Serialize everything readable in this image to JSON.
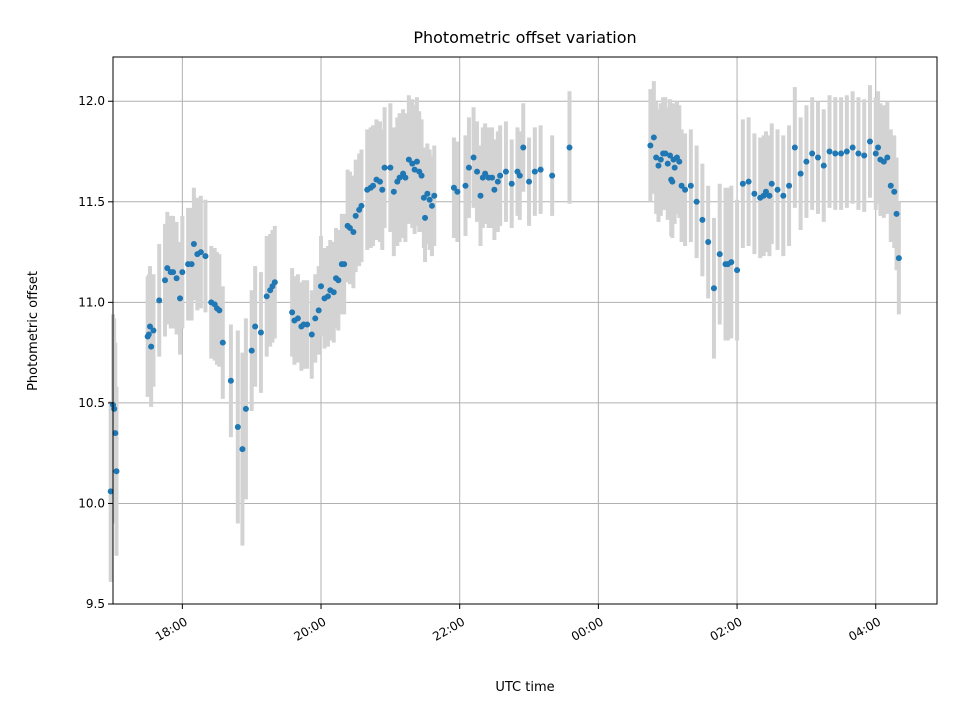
{
  "chart_data": {
    "type": "scatter",
    "title": "Photometric offset variation",
    "xlabel": "UTC time",
    "ylabel": "Photometric offset",
    "xlim": [
      "17:00",
      "04:53"
    ],
    "ylim": [
      9.5,
      12.22
    ],
    "grid": true,
    "x_ticks": [
      "18:00",
      "20:00",
      "22:00",
      "00:00",
      "02:00",
      "04:00"
    ],
    "y_ticks": [
      "9.5",
      "10.0",
      "10.5",
      "11.0",
      "11.5",
      "12.0"
    ],
    "colors": {
      "points": "#1f77b4",
      "error_bars": "#d3d3d3"
    },
    "series": [
      {
        "x": [
          "16:58",
          "17:00",
          "17:01",
          "17:02",
          "17:03",
          "17:30",
          "17:31",
          "17:32",
          "17:33",
          "17:35",
          "17:40",
          "17:45",
          "17:47",
          "17:50",
          "17:52",
          "17:55",
          "17:58",
          "18:00",
          "18:05",
          "18:08",
          "18:10",
          "18:13",
          "18:16",
          "18:20",
          "18:25",
          "18:28",
          "18:30",
          "18:32",
          "18:35",
          "18:42",
          "18:48",
          "18:52",
          "18:55",
          "19:00",
          "19:03",
          "19:08",
          "19:13",
          "19:16",
          "19:18",
          "19:20",
          "19:35",
          "19:37",
          "19:40",
          "19:43",
          "19:45",
          "19:48",
          "19:52",
          "19:55",
          "19:58",
          "20:00",
          "20:03",
          "20:06",
          "20:08",
          "20:11",
          "20:13",
          "20:15",
          "20:18",
          "20:20",
          "20:23",
          "20:25",
          "20:28",
          "20:30",
          "20:33",
          "20:35",
          "20:40",
          "20:43",
          "20:45",
          "20:48",
          "20:51",
          "20:53",
          "20:55",
          "21:00",
          "21:03",
          "21:06",
          "21:08",
          "21:11",
          "21:13",
          "21:16",
          "21:19",
          "21:21",
          "21:23",
          "21:25",
          "21:27",
          "21:29",
          "21:30",
          "21:32",
          "21:34",
          "21:36",
          "21:38",
          "21:55",
          "21:58",
          "22:05",
          "22:08",
          "22:12",
          "22:15",
          "22:18",
          "22:20",
          "22:22",
          "22:25",
          "22:28",
          "22:30",
          "22:33",
          "22:35",
          "22:40",
          "22:45",
          "22:50",
          "22:52",
          "22:55",
          "23:00",
          "23:05",
          "23:10",
          "23:20",
          "23:35",
          "00:45",
          "00:48",
          "00:50",
          "00:52",
          "00:54",
          "00:56",
          "00:58",
          "01:00",
          "01:02",
          "01:03",
          "01:04",
          "01:05",
          "01:06",
          "01:08",
          "01:10",
          "01:12",
          "01:15",
          "01:20",
          "01:25",
          "01:30",
          "01:35",
          "01:40",
          "01:45",
          "01:50",
          "01:52",
          "01:55",
          "02:00",
          "02:05",
          "02:10",
          "02:15",
          "02:20",
          "02:23",
          "02:25",
          "02:28",
          "02:30",
          "02:35",
          "02:40",
          "02:45",
          "02:50",
          "02:55",
          "03:00",
          "03:05",
          "03:10",
          "03:15",
          "03:20",
          "03:25",
          "03:30",
          "03:35",
          "03:40",
          "03:45",
          "03:50",
          "03:55",
          "04:00",
          "04:02",
          "04:04",
          "04:07",
          "04:10",
          "04:13",
          "04:16",
          "04:18",
          "04:20"
        ],
        "y": [
          10.06,
          10.49,
          10.47,
          10.35,
          10.16,
          10.83,
          10.84,
          10.88,
          10.78,
          10.86,
          11.01,
          11.11,
          11.17,
          11.15,
          11.15,
          11.12,
          11.02,
          11.15,
          11.19,
          11.19,
          11.29,
          11.24,
          11.25,
          11.23,
          11.0,
          10.99,
          10.97,
          10.96,
          10.8,
          10.61,
          10.38,
          10.27,
          10.47,
          10.76,
          10.88,
          10.85,
          11.03,
          11.06,
          11.08,
          11.1,
          10.95,
          10.91,
          10.92,
          10.88,
          10.89,
          10.89,
          10.84,
          10.92,
          10.96,
          11.08,
          11.02,
          11.03,
          11.06,
          11.05,
          11.12,
          11.11,
          11.19,
          11.19,
          11.38,
          11.37,
          11.35,
          11.43,
          11.46,
          11.48,
          11.56,
          11.57,
          11.58,
          11.61,
          11.6,
          11.56,
          11.67,
          11.67,
          11.55,
          11.6,
          11.62,
          11.64,
          11.62,
          11.71,
          11.69,
          11.66,
          11.7,
          11.65,
          11.63,
          11.52,
          11.42,
          11.54,
          11.51,
          11.48,
          11.53,
          11.57,
          11.55,
          11.58,
          11.67,
          11.72,
          11.65,
          11.53,
          11.62,
          11.64,
          11.62,
          11.62,
          11.56,
          11.6,
          11.63,
          11.65,
          11.59,
          11.65,
          11.63,
          11.77,
          11.6,
          11.65,
          11.66,
          11.63,
          11.77,
          11.78,
          11.82,
          11.72,
          11.68,
          11.71,
          11.74,
          11.74,
          11.69,
          11.73,
          11.61,
          11.6,
          11.71,
          11.67,
          11.72,
          11.7,
          11.58,
          11.56,
          11.58,
          11.5,
          11.41,
          11.3,
          11.07,
          11.24,
          11.19,
          11.19,
          11.2,
          11.16,
          11.59,
          11.6,
          11.54,
          11.52,
          11.53,
          11.55,
          11.53,
          11.59,
          11.56,
          11.53,
          11.58,
          11.77,
          11.64,
          11.7,
          11.74,
          11.72,
          11.68,
          11.75,
          11.74,
          11.74,
          11.75,
          11.77,
          11.74,
          11.73,
          11.8,
          11.74,
          11.77,
          11.71,
          11.7,
          11.72,
          11.58,
          11.55,
          11.44,
          11.22
        ],
        "yerr": [
          0.45,
          0.45,
          0.45,
          0.45,
          0.42,
          0.3,
          0.3,
          0.3,
          0.3,
          0.28,
          0.28,
          0.28,
          0.28,
          0.28,
          0.28,
          0.28,
          0.28,
          0.28,
          0.28,
          0.28,
          0.28,
          0.28,
          0.28,
          0.28,
          0.28,
          0.28,
          0.28,
          0.28,
          0.28,
          0.28,
          0.48,
          0.48,
          0.45,
          0.3,
          0.3,
          0.3,
          0.3,
          0.28,
          0.28,
          0.28,
          0.22,
          0.22,
          0.22,
          0.22,
          0.22,
          0.22,
          0.22,
          0.22,
          0.22,
          0.25,
          0.25,
          0.25,
          0.25,
          0.25,
          0.25,
          0.25,
          0.25,
          0.25,
          0.28,
          0.28,
          0.28,
          0.28,
          0.28,
          0.28,
          0.3,
          0.3,
          0.3,
          0.3,
          0.3,
          0.3,
          0.3,
          0.32,
          0.32,
          0.32,
          0.32,
          0.32,
          0.32,
          0.32,
          0.32,
          0.32,
          0.32,
          0.3,
          0.28,
          0.25,
          0.22,
          0.25,
          0.25,
          0.25,
          0.25,
          0.25,
          0.25,
          0.25,
          0.25,
          0.25,
          0.25,
          0.25,
          0.25,
          0.25,
          0.25,
          0.25,
          0.25,
          0.25,
          0.25,
          0.25,
          0.22,
          0.22,
          0.22,
          0.22,
          0.22,
          0.22,
          0.22,
          0.2,
          0.28,
          0.28,
          0.28,
          0.28,
          0.28,
          0.28,
          0.28,
          0.28,
          0.28,
          0.28,
          0.28,
          0.28,
          0.28,
          0.28,
          0.28,
          0.28,
          0.28,
          0.28,
          0.28,
          0.28,
          0.28,
          0.28,
          0.35,
          0.35,
          0.38,
          0.38,
          0.38,
          0.35,
          0.32,
          0.32,
          0.3,
          0.3,
          0.3,
          0.3,
          0.3,
          0.3,
          0.3,
          0.3,
          0.3,
          0.3,
          0.28,
          0.28,
          0.28,
          0.28,
          0.28,
          0.28,
          0.28,
          0.28,
          0.28,
          0.28,
          0.28,
          0.28,
          0.28,
          0.28,
          0.28,
          0.28,
          0.28,
          0.28,
          0.28,
          0.28,
          0.28,
          0.28
        ]
      }
    ]
  }
}
